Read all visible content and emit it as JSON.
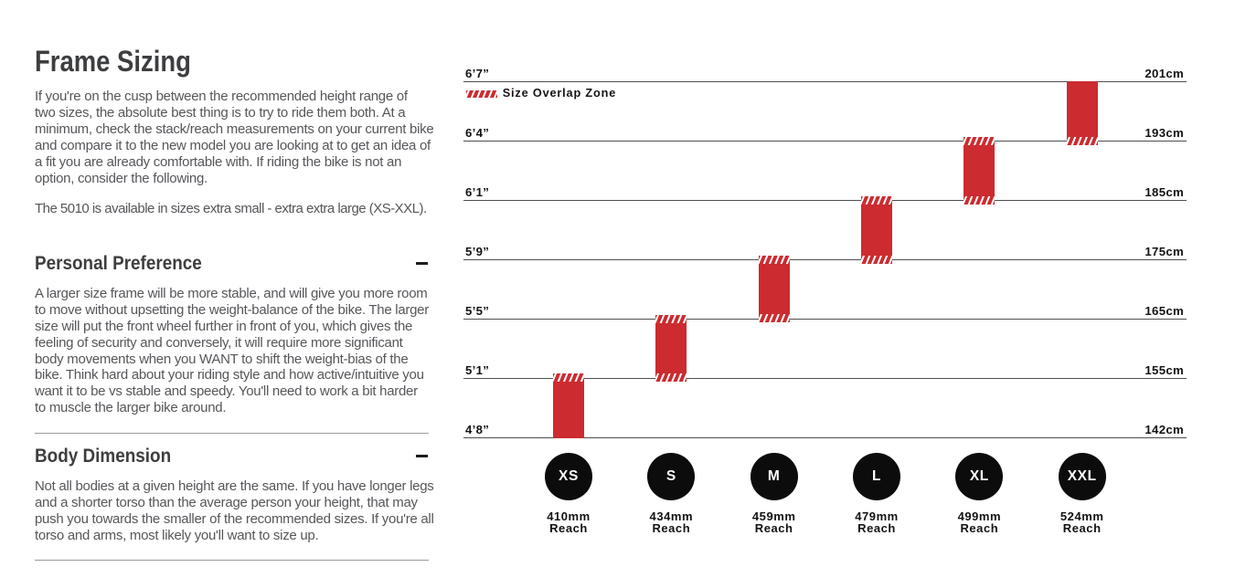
{
  "page": {
    "title": "Frame Sizing",
    "intro_paragraphs": [
      "If you're on the cusp between the recommended height range of\ntwo sizes, the absolute best thing is to try to ride them both. At a\nminimum, check the stack/reach measurements on your current bike\nand compare it to the new model you are looking at to get an idea of\na fit you are already comfortable with. If riding the bike is not an\noption, consider the following.",
      "The 5010 is available in sizes extra small - extra extra large (XS-XXL)."
    ],
    "sections": [
      {
        "title": "Personal Preference",
        "state_icon": "minus",
        "body": "A larger size frame will be more stable, and will give you more room\nto move without upsetting the weight-balance of the bike. The larger\nsize will put the front wheel further in front of you, which gives the\nfeeling of security and conversely, it will require more significant\nbody movements when you WANT to shift the weight-bias of the\nbike. Think hard about your riding style and how active/intuitive you\nwant it to be vs stable and speedy. You'll need to work a bit harder\nto muscle the larger bike around."
      },
      {
        "title": "Body Dimension",
        "state_icon": "minus",
        "body": "Not all bodies at a given height are the same. If you have longer legs\nand a shorter torso than the average person your height, that may\npush you towards the smaller of the recommended sizes. If you're all\ntorso and arms, most likely you'll want to size up."
      }
    ]
  },
  "chart_data": {
    "type": "bar",
    "title": "",
    "legend": {
      "label": "Size Overlap Zone",
      "swatch": "red-hatch"
    },
    "orientation": "vertical-range-bars",
    "grid": "horizontal-lines",
    "height_lines": [
      {
        "ft": "6’7”",
        "cm": "201cm"
      },
      {
        "ft": "6’4”",
        "cm": "193cm"
      },
      {
        "ft": "6’1”",
        "cm": "185cm"
      },
      {
        "ft": "5’9”",
        "cm": "175cm"
      },
      {
        "ft": "5’5”",
        "cm": "165cm"
      },
      {
        "ft": "5’1”",
        "cm": "155cm"
      },
      {
        "ft": "4’8”",
        "cm": "142cm"
      }
    ],
    "sizes": [
      {
        "label": "XS",
        "reach_mm": "410mm",
        "reach_word": "Reach",
        "range_cm": [
          142,
          155
        ],
        "overlap_top": true,
        "overlap_bottom": false
      },
      {
        "label": "S",
        "reach_mm": "434mm",
        "reach_word": "Reach",
        "range_cm": [
          155,
          165
        ],
        "overlap_top": true,
        "overlap_bottom": true
      },
      {
        "label": "M",
        "reach_mm": "459mm",
        "reach_word": "Reach",
        "range_cm": [
          165,
          175
        ],
        "overlap_top": true,
        "overlap_bottom": true
      },
      {
        "label": "L",
        "reach_mm": "479mm",
        "reach_word": "Reach",
        "range_cm": [
          175,
          185
        ],
        "overlap_top": true,
        "overlap_bottom": true
      },
      {
        "label": "XL",
        "reach_mm": "499mm",
        "reach_word": "Reach",
        "range_cm": [
          185,
          193
        ],
        "overlap_top": true,
        "overlap_bottom": true
      },
      {
        "label": "XXL",
        "reach_mm": "524mm",
        "reach_word": "Reach",
        "range_cm": [
          193,
          201
        ],
        "overlap_top": false,
        "overlap_bottom": true
      }
    ],
    "colors": {
      "bar_red": "#cc2b30",
      "hatch_white": "#ffffff",
      "line_gray": "#4e4e4e",
      "circle_black": "#0c0c0c",
      "label_black": "#121212"
    }
  }
}
